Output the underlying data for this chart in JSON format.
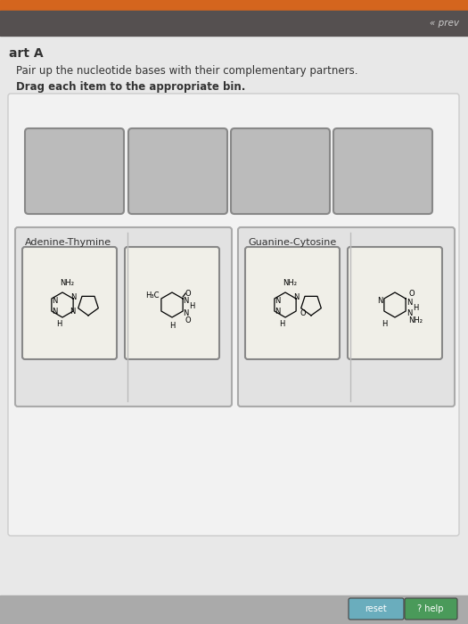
{
  "bg_color": "#c8c8c8",
  "orange_bar_color": "#d4651e",
  "toolbar_color": "#555050",
  "prev_text": "« prev",
  "main_bg": "#e8e8e8",
  "content_bg": "#e0e0e0",
  "white_bg": "#f0f0f0",
  "title_text": "art A",
  "instruction1": "Pair up the nucleotide bases with their complementary partners.",
  "instruction2": "Drag each item to the appropriate bin.",
  "drop_box_fill": "#b8b8b8",
  "drop_box_edge": "#888888",
  "bin_bg": "#e2e2e2",
  "bin_border": "#999999",
  "bin1_label": "Adenine-Thymine",
  "bin2_label": "Guanine-Cytosine",
  "mol_box_bg": "#f0efe8",
  "mol_box_edge": "#888888",
  "reset_text": "reset",
  "help_text": "? help",
  "reset_btn_color": "#6aadbd",
  "help_btn_color": "#4a9a5a",
  "bottom_bar_color": "#aaaaaa"
}
